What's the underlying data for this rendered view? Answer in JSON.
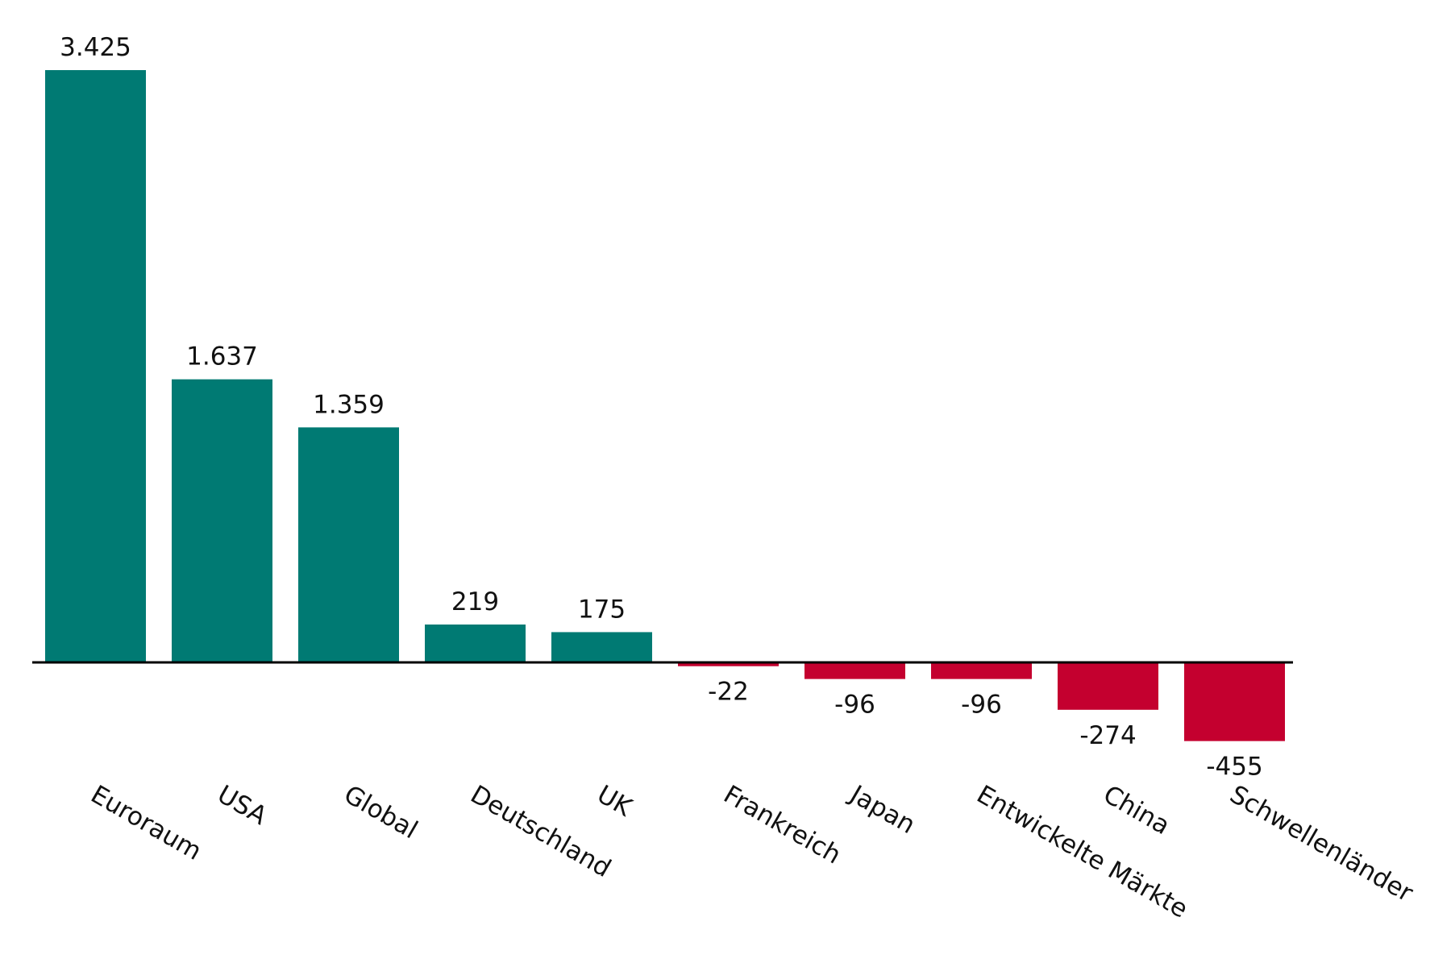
{
  "chart_data": {
    "type": "bar",
    "categories": [
      "Euroraum",
      "USA",
      "Global",
      "Deutschland",
      "UK",
      "Frankreich",
      "Japan",
      "Entwickelte Märkte",
      "China",
      "Schwellenländer"
    ],
    "values": [
      3425,
      1637,
      1359,
      219,
      175,
      -22,
      -96,
      -96,
      -274,
      -455
    ],
    "value_labels": [
      "3.425",
      "1.637",
      "1.359",
      "219",
      "175",
      "-22",
      "-96",
      "-96",
      "-274",
      "-455"
    ],
    "positive_color": "#007a73",
    "negative_color": "#c4002f"
  }
}
